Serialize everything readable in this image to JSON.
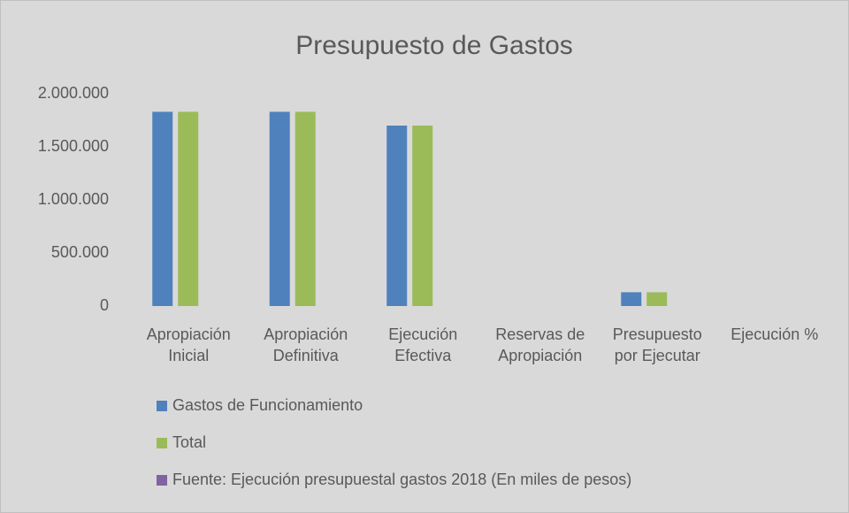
{
  "chart_data": {
    "type": "bar",
    "title": "Presupuesto de Gastos",
    "categories": [
      "Apropiación Inicial",
      "Apropiación Definitiva",
      "Ejecución Efectiva",
      "Reservas de Apropiación",
      "Presupuesto por Ejecutar",
      "Ejecución %"
    ],
    "series": [
      {
        "name": "Gastos de Funcionamiento",
        "color": "#4f81bd",
        "values": [
          1830000,
          1830000,
          1700000,
          0,
          130000,
          0
        ]
      },
      {
        "name": "Total",
        "color": "#9bbb59",
        "values": [
          1830000,
          1830000,
          1700000,
          0,
          130000,
          0
        ]
      },
      {
        "name": "Fuente: Ejecución presupuestal gastos 2018 (En miles de pesos)",
        "color": "#8064a2",
        "values": [
          null,
          null,
          null,
          null,
          null,
          null
        ]
      }
    ],
    "ylim": [
      0,
      2000000
    ],
    "yticks": [
      0,
      {
        "value": 500000,
        "label": "500.000"
      },
      {
        "value": 1000000,
        "label": "1.000.000"
      },
      {
        "value": 1500000,
        "label": "1.500.000"
      },
      {
        "value": 2000000,
        "label": "2.000.000"
      }
    ],
    "grid": false
  }
}
